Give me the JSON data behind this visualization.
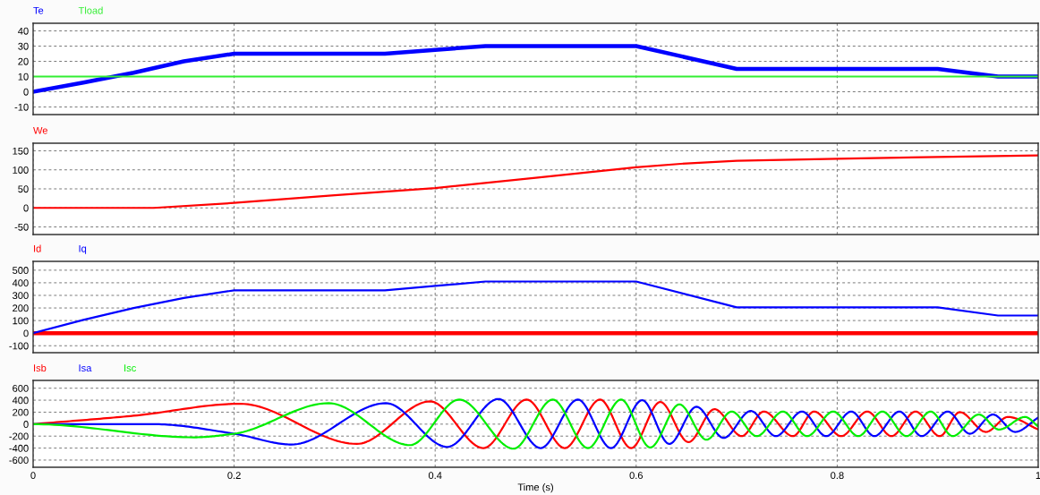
{
  "chart_data": [
    {
      "type": "line",
      "xlim": [
        0,
        1
      ],
      "xticks": [
        0,
        0.2,
        0.4,
        0.6,
        0.8,
        1
      ],
      "ylim": [
        -15,
        45
      ],
      "yticks": [
        -10,
        0,
        10,
        20,
        30,
        40
      ],
      "grid": true,
      "legend": "top left",
      "tick_labels": "y",
      "series": [
        {
          "name": "Te",
          "color": "#0000ff",
          "x": [
            0,
            0.05,
            0.1,
            0.15,
            0.2,
            0.35,
            0.4,
            0.45,
            0.6,
            0.7,
            0.9,
            0.96,
            1
          ],
          "values": [
            0,
            6,
            12.5,
            20,
            25,
            25,
            27.5,
            30,
            30,
            15,
            15,
            10,
            10
          ]
        },
        {
          "name": "Tload",
          "color": "#33ee33",
          "x": [
            0,
            1
          ],
          "values": [
            10,
            10
          ]
        }
      ]
    },
    {
      "type": "line",
      "xlim": [
        0,
        1
      ],
      "xticks": [
        0,
        0.2,
        0.4,
        0.6,
        0.8,
        1
      ],
      "ylim": [
        -70,
        170
      ],
      "yticks": [
        -50,
        0,
        50,
        100,
        150
      ],
      "grid": true,
      "legend": "top left",
      "tick_labels": "y",
      "series": [
        {
          "name": "We",
          "color": "#ff0000",
          "x": [
            0,
            0.12,
            0.2,
            0.3,
            0.4,
            0.5,
            0.6,
            0.65,
            0.7,
            0.8,
            0.9,
            1
          ],
          "values": [
            0,
            0,
            13,
            33,
            52,
            79,
            107,
            117,
            124,
            129,
            134,
            138
          ]
        }
      ]
    },
    {
      "type": "line",
      "xlim": [
        0,
        1
      ],
      "xticks": [
        0,
        0.2,
        0.4,
        0.6,
        0.8,
        1
      ],
      "ylim": [
        -155,
        570
      ],
      "yticks": [
        -100,
        0,
        100,
        200,
        300,
        400,
        500
      ],
      "grid": true,
      "legend": "top left",
      "tick_labels": "y",
      "series": [
        {
          "name": "Id",
          "color": "#ff0000",
          "x": [
            0,
            1
          ],
          "values": [
            0,
            0
          ]
        },
        {
          "name": "Iq",
          "color": "#0000ff",
          "x": [
            0,
            0.05,
            0.1,
            0.15,
            0.2,
            0.35,
            0.4,
            0.45,
            0.6,
            0.7,
            0.9,
            0.96,
            1
          ],
          "values": [
            0,
            105,
            200,
            280,
            340,
            340,
            375,
            410,
            410,
            205,
            205,
            140,
            140
          ]
        }
      ]
    },
    {
      "type": "line",
      "xlim": [
        0,
        1
      ],
      "xticks": [
        0,
        0.2,
        0.4,
        0.6,
        0.8,
        1
      ],
      "ylim": [
        -720,
        730
      ],
      "yticks": [
        -600,
        -400,
        -200,
        0,
        200,
        400,
        600
      ],
      "grid": true,
      "legend": "top left",
      "xlabel": "Time (s)",
      "series": [
        {
          "name": "Isb",
          "color": "#ff0000",
          "x": [
            0,
            0.1,
            0.206,
            0.322,
            0.395,
            0.448,
            0.491,
            0.529,
            0.564,
            0.595,
            0.624,
            0.652,
            0.678,
            0.705,
            0.727,
            0.756,
            0.777,
            0.804,
            0.83,
            0.854,
            0.878,
            0.902,
            0.922,
            0.948,
            0.97,
            1
          ],
          "values": [
            0,
            140,
            340,
            -330,
            380,
            -400,
            410,
            -400,
            410,
            -400,
            370,
            -300,
            250,
            -200,
            210,
            -200,
            210,
            -200,
            210,
            -200,
            210,
            -200,
            200,
            -130,
            120,
            -90
          ]
        },
        {
          "name": "Isa",
          "color": "#0000ff",
          "x": [
            0,
            0.12,
            0.2,
            0.257,
            0.351,
            0.412,
            0.463,
            0.505,
            0.542,
            0.575,
            0.606,
            0.633,
            0.66,
            0.687,
            0.714,
            0.739,
            0.765,
            0.789,
            0.814,
            0.837,
            0.862,
            0.884,
            0.91,
            0.932,
            0.955,
            0.977,
            1
          ],
          "values": [
            0,
            0,
            -160,
            -340,
            350,
            -380,
            420,
            -400,
            410,
            -400,
            400,
            -330,
            290,
            -230,
            220,
            -200,
            210,
            -200,
            210,
            -200,
            210,
            -200,
            210,
            -160,
            160,
            -130,
            110
          ]
        },
        {
          "name": "Isc",
          "color": "#00ee00",
          "x": [
            0,
            0.16,
            0.2,
            0.294,
            0.375,
            0.424,
            0.478,
            0.517,
            0.552,
            0.585,
            0.614,
            0.643,
            0.67,
            0.695,
            0.72,
            0.746,
            0.77,
            0.796,
            0.821,
            0.845,
            0.869,
            0.893,
            0.915,
            0.941,
            0.961,
            0.987,
            1
          ],
          "values": [
            0,
            -220,
            -160,
            350,
            -350,
            410,
            -410,
            410,
            -400,
            410,
            -390,
            330,
            -260,
            210,
            -200,
            210,
            -200,
            210,
            -200,
            210,
            -200,
            210,
            -200,
            160,
            -90,
            120,
            -40
          ]
        }
      ]
    }
  ]
}
